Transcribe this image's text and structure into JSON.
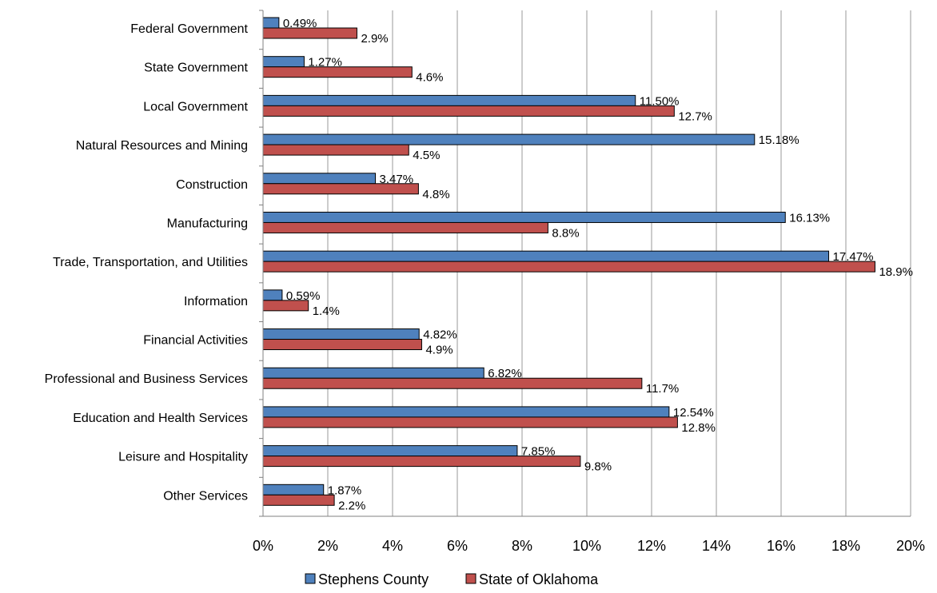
{
  "chart_data": {
    "type": "bar",
    "orientation": "horizontal",
    "categories": [
      "Federal Government",
      "State Government",
      "Local Government",
      "Natural Resources and Mining",
      "Construction",
      "Manufacturing",
      "Trade, Transportation, and Utilities",
      "Information",
      "Financial Activities",
      "Professional and Business Services",
      "Education and Health Services",
      "Leisure and Hospitality",
      "Other Services"
    ],
    "series": [
      {
        "name": "Stephens County",
        "color": "#4f81bd",
        "values": [
          0.49,
          1.27,
          11.5,
          15.18,
          3.47,
          16.13,
          17.47,
          0.59,
          4.82,
          6.82,
          12.54,
          7.85,
          1.87
        ],
        "labels": [
          "0.49%",
          "1.27%",
          "11.50%",
          "15.18%",
          "3.47%",
          "16.13%",
          "17.47%",
          "0.59%",
          "4.82%",
          "6.82%",
          "12.54%",
          "7.85%",
          "1.87%"
        ]
      },
      {
        "name": "State of Oklahoma",
        "color": "#c0504d",
        "values": [
          2.9,
          4.6,
          12.7,
          4.5,
          4.8,
          8.8,
          18.9,
          1.4,
          4.9,
          11.7,
          12.8,
          9.8,
          2.2
        ],
        "labels": [
          "2.9%",
          "4.6%",
          "12.7%",
          "4.5%",
          "4.8%",
          "8.8%",
          "18.9%",
          "1.4%",
          "4.9%",
          "11.7%",
          "12.8%",
          "9.8%",
          "2.2%"
        ]
      }
    ],
    "xlim": [
      0,
      20
    ],
    "xticks": [
      0,
      2,
      4,
      6,
      8,
      10,
      12,
      14,
      16,
      18,
      20
    ],
    "xtick_labels": [
      "0%",
      "2%",
      "4%",
      "6%",
      "8%",
      "10%",
      "12%",
      "14%",
      "16%",
      "18%",
      "20%"
    ],
    "grid": "vertical",
    "legend": {
      "position": "bottom",
      "entries": [
        "Stephens County",
        "State of Oklahoma"
      ]
    }
  }
}
